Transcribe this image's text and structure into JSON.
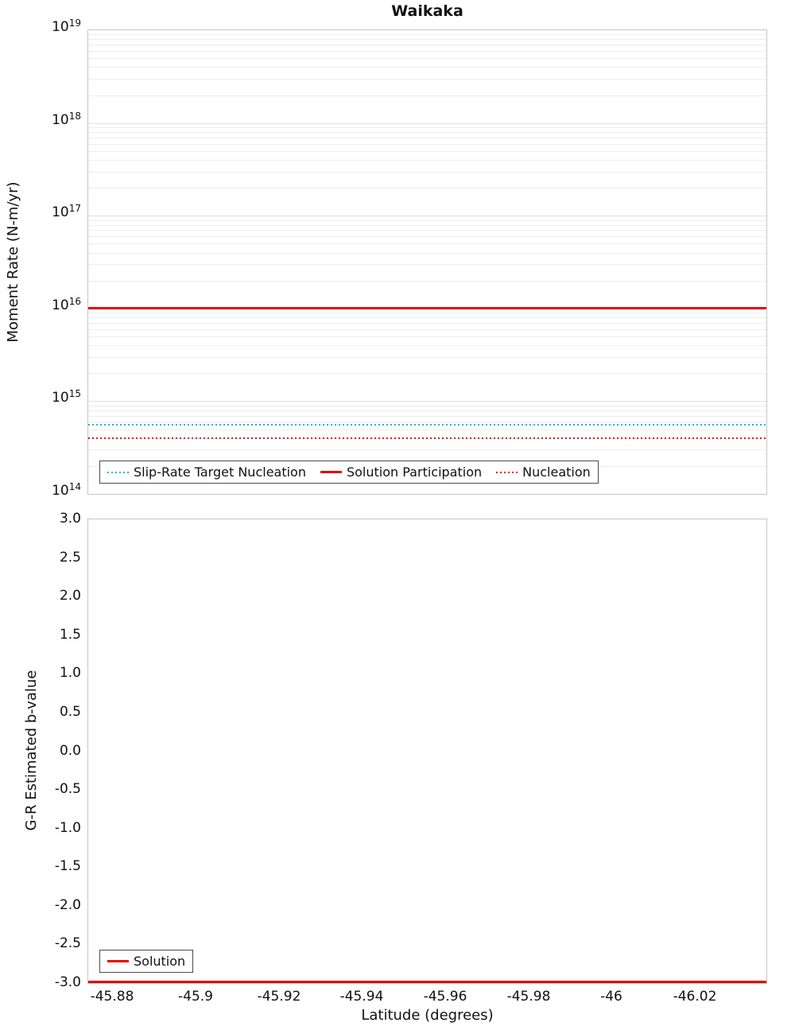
{
  "page": {
    "title": "Waikaka"
  },
  "colors": {
    "solution_red": "#e60000",
    "target_cyan": "#17b8c8",
    "grid_minor": "#ededed",
    "grid_major": "#e0e0e0"
  },
  "chart_data": [
    {
      "type": "line",
      "title": "Waikaka",
      "ylabel": "Moment Rate (N-m/yr)",
      "xlabel": "",
      "yscale": "log",
      "ylim": [
        100000000000000.0,
        1e+19
      ],
      "ytick_exponents": [
        "19",
        "18",
        "17",
        "16",
        "15",
        "14"
      ],
      "xlim": [
        -45.874,
        -46.037
      ],
      "grid": "horizontal log minor gridlines on",
      "series": [
        {
          "name": "Slip-Rate Target Nucleation",
          "color": "#17b8c8",
          "style": "dotted",
          "value": 560000000000000.0
        },
        {
          "name": "Solution Participation",
          "color": "#e60000",
          "style": "solid",
          "value": 1e+16
        },
        {
          "name": "Nucleation",
          "color": "#e60000",
          "style": "dotted",
          "value": 400000000000000.0
        }
      ],
      "legend": {
        "position": "lower left",
        "entries": [
          "Slip-Rate Target Nucleation",
          "Solution Participation",
          "Nucleation"
        ]
      },
      "note": "all series are horizontal constant lines spanning the full latitude range"
    },
    {
      "type": "line",
      "title": "",
      "ylabel": "G-R Estimated b-value",
      "xlabel": "Latitude (degrees)",
      "yscale": "linear",
      "ylim": [
        -3.0,
        3.0
      ],
      "yticks": [
        "3.0",
        "2.5",
        "2.0",
        "1.5",
        "1.0",
        "0.5",
        "0.0",
        "-0.5",
        "-1.0",
        "-1.5",
        "-2.0",
        "-2.5",
        "-3.0"
      ],
      "xlim": [
        -45.874,
        -46.037
      ],
      "xticks": [
        "-45.88",
        "-45.9",
        "-45.92",
        "-45.94",
        "-45.96",
        "-45.98",
        "-46",
        "-46.02"
      ],
      "grid": "off",
      "series": [
        {
          "name": "Solution",
          "color": "#e60000",
          "style": "solid",
          "value": -3.0
        }
      ],
      "legend": {
        "position": "lower left",
        "entries": [
          "Solution"
        ]
      },
      "note": "solution b-value line sits at -3.0, along the bottom axis spine"
    }
  ]
}
